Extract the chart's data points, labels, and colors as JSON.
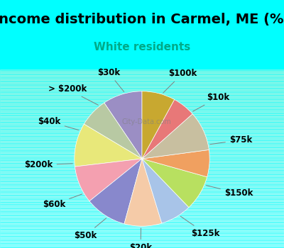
{
  "title": "Income distribution in Carmel, ME (%)",
  "subtitle": "White residents",
  "background_top": "#00ffff",
  "background_chart": "#e8f5e8",
  "labels": [
    "$100k",
    "$10k",
    "$75k",
    "$150k",
    "$125k",
    "$20k",
    "$50k",
    "$60k",
    "$200k",
    "$40k",
    "> $200k",
    "$30k"
  ],
  "sizes": [
    9.5,
    7.0,
    10.5,
    9.0,
    10.0,
    9.0,
    7.5,
    8.5,
    6.5,
    9.5,
    5.5,
    8.0
  ],
  "colors": [
    "#9b8ec4",
    "#b8c9a3",
    "#e8e87a",
    "#f4a0b0",
    "#8888cc",
    "#f5cba8",
    "#a8c4e8",
    "#b8e060",
    "#f0a060",
    "#c8bfa0",
    "#e87878",
    "#c8a830"
  ],
  "title_fontsize": 14,
  "subtitle_fontsize": 11,
  "label_fontsize": 8.5,
  "startangle": 90
}
